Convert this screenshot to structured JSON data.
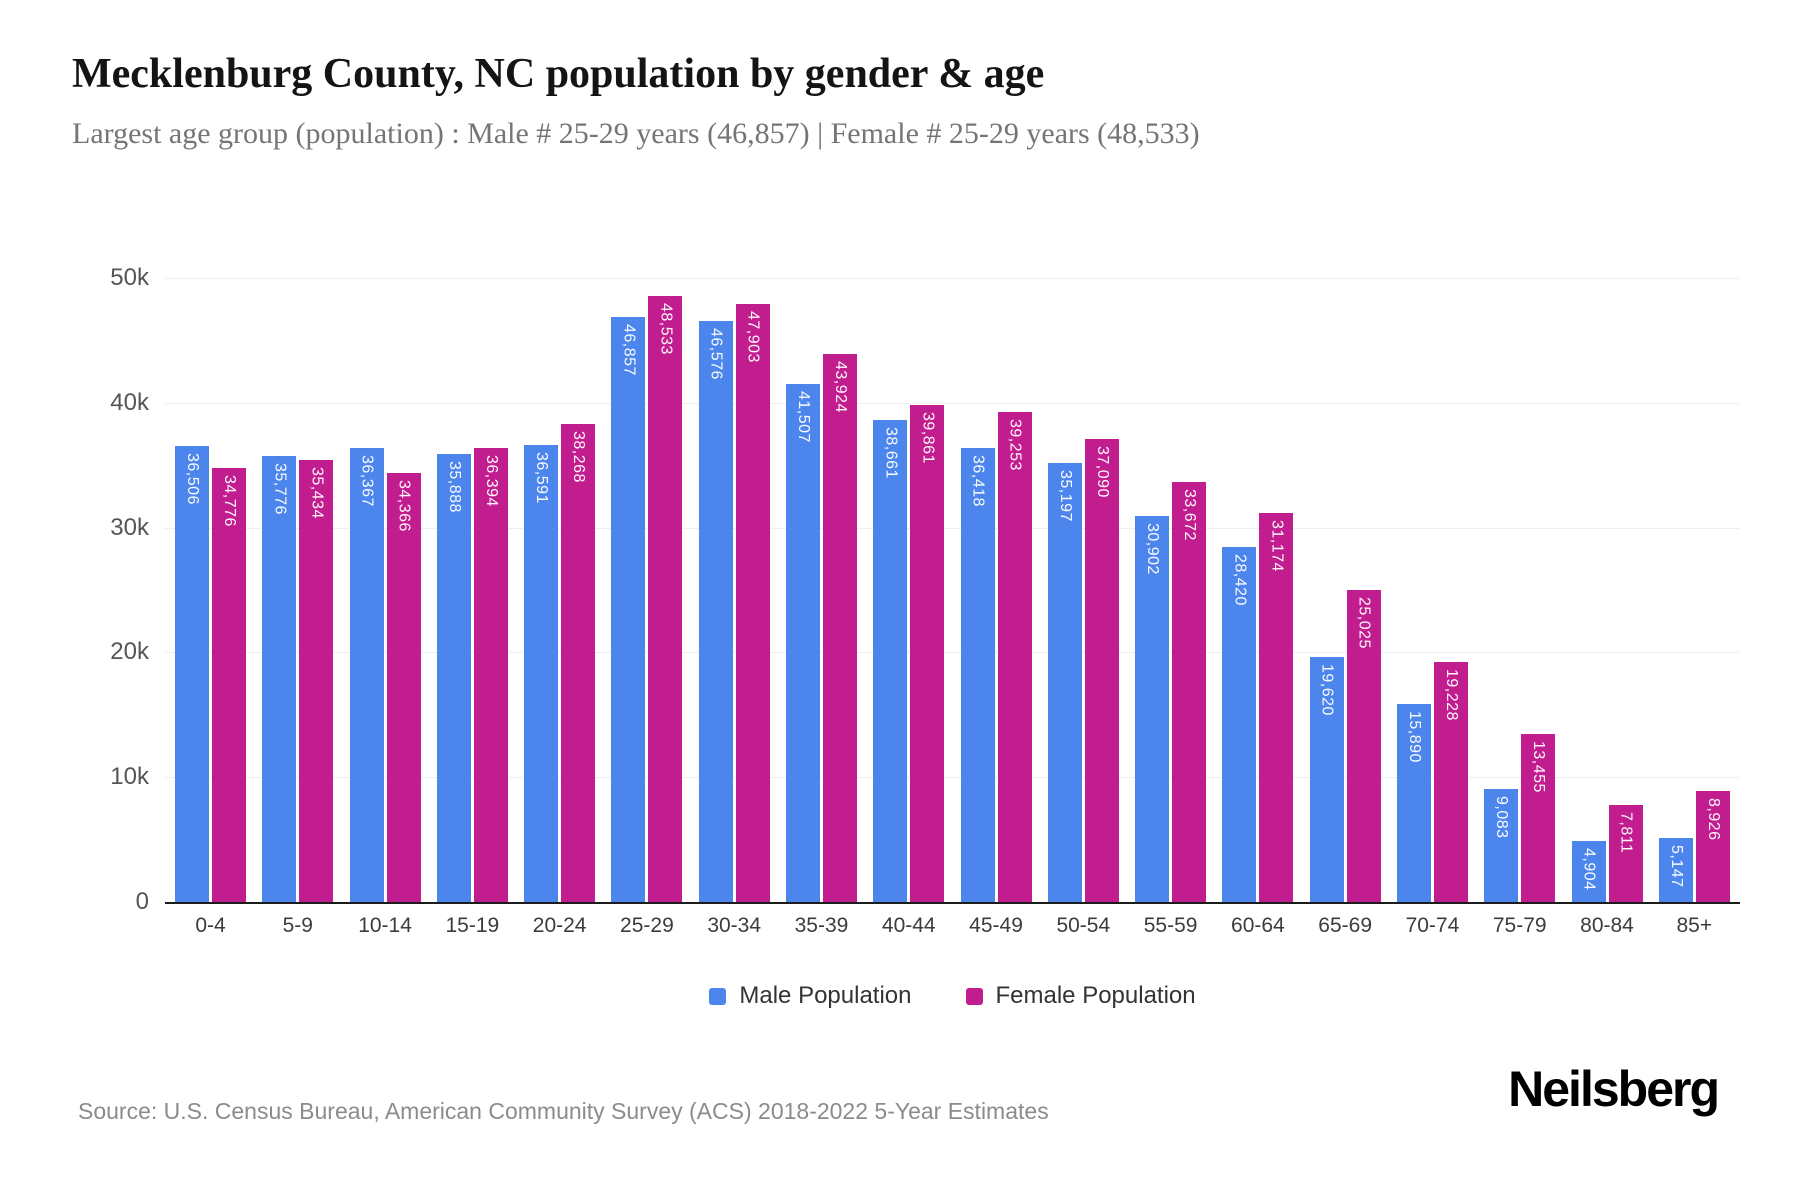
{
  "header": {
    "title": "Mecklenburg County, NC population by gender & age",
    "subtitle": "Largest age group (population) : Male # 25-29 years (46,857) | Female # 25-29 years (48,533)"
  },
  "chart_data": {
    "type": "bar",
    "title": "Mecklenburg County, NC population by gender & age",
    "subtitle": "Largest age group (population) : Male # 25-29 years (46,857) | Female # 25-29 years (48,533)",
    "categories": [
      "0-4",
      "5-9",
      "10-14",
      "15-19",
      "20-24",
      "25-29",
      "30-34",
      "35-39",
      "40-44",
      "45-49",
      "50-54",
      "55-59",
      "60-64",
      "65-69",
      "70-74",
      "75-79",
      "80-84",
      "85+"
    ],
    "series": [
      {
        "name": "Male Population",
        "color": "#4c86ec",
        "values": [
          36506,
          35776,
          36367,
          35888,
          36591,
          46857,
          46576,
          41507,
          38661,
          36418,
          35197,
          30902,
          28420,
          19620,
          15890,
          9083,
          4904,
          5147
        ]
      },
      {
        "name": "Female Population",
        "color": "#c21d8f",
        "values": [
          34776,
          35434,
          34366,
          36394,
          38268,
          48533,
          47903,
          43924,
          39861,
          39253,
          37090,
          33672,
          31174,
          25025,
          19228,
          13455,
          7811,
          8926
        ]
      }
    ],
    "xlabel": "",
    "ylabel": "",
    "ylim": [
      0,
      50000
    ],
    "yticks": [
      "0",
      "10k",
      "20k",
      "30k",
      "40k",
      "50k"
    ],
    "grid": true,
    "legend_position": "bottom"
  },
  "footer": {
    "source": "Source: U.S. Census Bureau, American Community Survey (ACS) 2018-2022 5-Year Estimates",
    "logo": "Neilsberg"
  }
}
